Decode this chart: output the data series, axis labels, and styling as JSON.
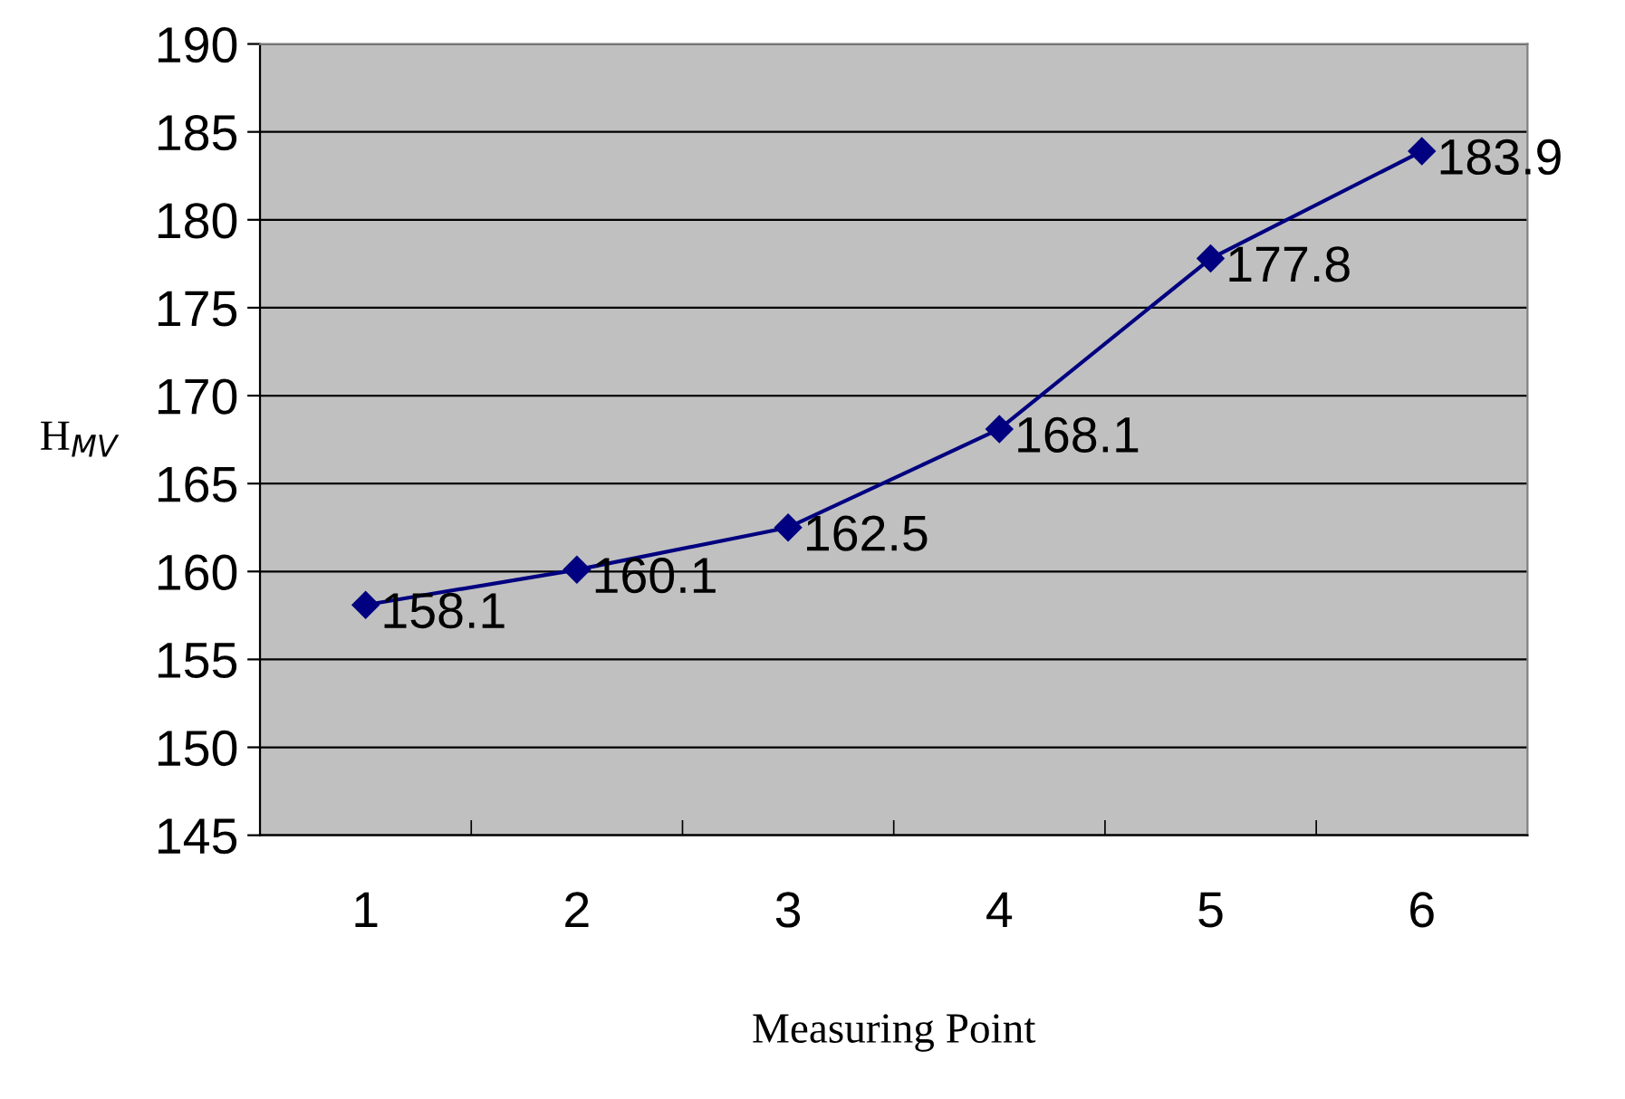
{
  "chart_data": {
    "type": "line",
    "xlabel": "Measuring Point",
    "ylabel": "H$_{MV}$",
    "categories": [
      "1",
      "2",
      "3",
      "4",
      "5",
      "6"
    ],
    "series": [
      {
        "color": "#000080",
        "values": [
          158.1,
          160.1,
          162.5,
          168.1,
          177.8,
          183.9
        ]
      }
    ],
    "ylim": [
      145,
      190
    ],
    "yticks": [
      145,
      150,
      155,
      160,
      165,
      170,
      175,
      180,
      185,
      190
    ],
    "grid": "y",
    "marker": "diamond",
    "line_style": "solid",
    "data_labels": true,
    "legend": false
  }
}
